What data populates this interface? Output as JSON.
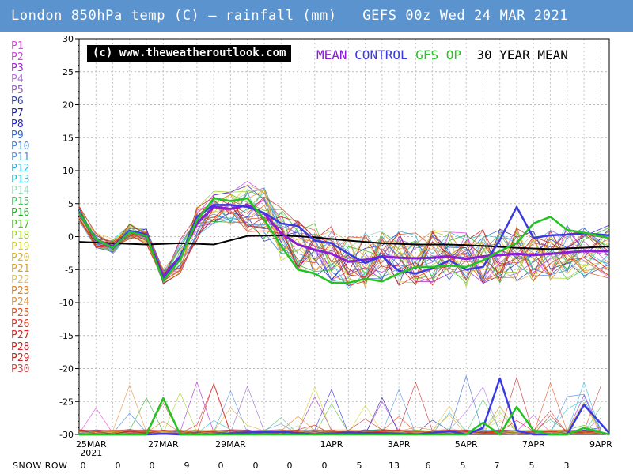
{
  "title": "London 850hPa temp (C) — rainfall (mm)   GEFS 00z Wed 24 MAR 2021",
  "badge": "(c) www.theweatheroutlook.com",
  "key": {
    "mean": "MEAN",
    "control": "CONTROL",
    "op": "GFS OP",
    "thirty": "30 YEAR MEAN"
  },
  "colors": {
    "header_bg": "#5b93cf",
    "mean": "#8a1dd6",
    "control": "#3a3ae0",
    "op": "#22c322",
    "thirty": "#000000"
  },
  "legend": [
    {
      "label": "P1",
      "color": "#e040e0"
    },
    {
      "label": "P2",
      "color": "#d040e0"
    },
    {
      "label": "P3",
      "color": "#a020d0"
    },
    {
      "label": "P4",
      "color": "#b070e0"
    },
    {
      "label": "P5",
      "color": "#9060c0"
    },
    {
      "label": "P6",
      "color": "#3040b0"
    },
    {
      "label": "P7",
      "color": "#2020a0"
    },
    {
      "label": "P8",
      "color": "#2020e0"
    },
    {
      "label": "P9",
      "color": "#3060d0"
    },
    {
      "label": "P10",
      "color": "#4080e0"
    },
    {
      "label": "P11",
      "color": "#5090e0"
    },
    {
      "label": "P12",
      "color": "#30b0e0"
    },
    {
      "label": "P13",
      "color": "#20c0d0"
    },
    {
      "label": "P14",
      "color": "#a0d8c0"
    },
    {
      "label": "P15",
      "color": "#40c060"
    },
    {
      "label": "P16",
      "color": "#20b020"
    },
    {
      "label": "P17",
      "color": "#50c020"
    },
    {
      "label": "P18",
      "color": "#a0d020"
    },
    {
      "label": "P19",
      "color": "#d0d020"
    },
    {
      "label": "P20",
      "color": "#e0b020"
    },
    {
      "label": "P21",
      "color": "#e0a020"
    },
    {
      "label": "P22",
      "color": "#e0c060"
    },
    {
      "label": "P23",
      "color": "#e08020"
    },
    {
      "label": "P24",
      "color": "#e09040"
    },
    {
      "label": "P25",
      "color": "#e05020"
    },
    {
      "label": "P26",
      "color": "#e03020"
    },
    {
      "label": "P27",
      "color": "#e02020"
    },
    {
      "label": "P28",
      "color": "#d02020"
    },
    {
      "label": "P29",
      "color": "#c02020"
    },
    {
      "label": "P30",
      "color": "#d04040"
    }
  ],
  "snow_row": {
    "label": "SNOW ROW",
    "values": [
      "0",
      "0",
      "0",
      "9",
      "0",
      "0",
      "0",
      "0",
      "5",
      "13",
      "6",
      "5",
      "7",
      "5",
      "3"
    ]
  },
  "chart_data": {
    "type": "line",
    "title": "London 850hPa temp (C) — rainfall (mm)",
    "ylim": [
      -30,
      30
    ],
    "yticks": [
      "30",
      "25",
      "20",
      "15",
      "10",
      "5",
      "0",
      "-5",
      "-10",
      "-15",
      "-20",
      "-25",
      "-30"
    ],
    "xlabels": [
      "25MAR",
      "2021",
      "27MAR",
      "29MAR",
      "1APR",
      "3APR",
      "5APR",
      "7APR",
      "9APR"
    ],
    "x_range_steps": [
      0,
      15.75
    ],
    "series": [
      {
        "name": "30 YEAR MEAN",
        "x": [
          0,
          1,
          2,
          3,
          4,
          5,
          6,
          7,
          8,
          9,
          10,
          11,
          12,
          13,
          14,
          15.75
        ],
        "values": [
          -0.8,
          -1.0,
          -1.2,
          -1.0,
          -1.2,
          0.1,
          0.2,
          -0.1,
          -0.6,
          -1.0,
          -1.2,
          -1.2,
          -1.4,
          -1.7,
          -1.9,
          -1.5
        ]
      },
      {
        "name": "MEAN",
        "x": [
          0,
          0.5,
          1,
          1.5,
          2,
          2.5,
          3,
          3.5,
          4,
          4.5,
          5,
          5.5,
          6,
          6.5,
          7,
          7.5,
          8,
          8.5,
          9,
          9.5,
          10,
          10.5,
          11,
          11.5,
          12,
          12.5,
          13,
          13.5,
          14,
          14.5,
          15,
          15.75
        ],
        "values": [
          3.6,
          -0.5,
          -1.5,
          0.8,
          0,
          -6.0,
          -3.0,
          2.0,
          4.5,
          4.2,
          4.8,
          3.5,
          0.5,
          -1.2,
          -2.0,
          -2.6,
          -3.8,
          -3.5,
          -3.0,
          -3.2,
          -3.3,
          -3.2,
          -3.0,
          -3.4,
          -3.0,
          -2.8,
          -2.6,
          -2.8,
          -2.6,
          -2.4,
          -2.2,
          -2.2
        ]
      },
      {
        "name": "CONTROL",
        "x": [
          0,
          0.5,
          1,
          1.5,
          2,
          2.5,
          3,
          3.5,
          4,
          4.5,
          5,
          5.5,
          6,
          6.5,
          7,
          7.5,
          8,
          8.5,
          9,
          9.5,
          10,
          10.5,
          11,
          11.5,
          12,
          12.5,
          13,
          13.5,
          14,
          14.5,
          15,
          15.75
        ],
        "values": [
          3.7,
          -0.3,
          -1.8,
          0.9,
          0.3,
          -6.5,
          -3.2,
          3.0,
          4.8,
          4.8,
          4.5,
          3.6,
          2.0,
          1.6,
          -0.6,
          -1.0,
          -2.6,
          -4.0,
          -3.0,
          -5.2,
          -5.6,
          -4.8,
          -3.6,
          -5.0,
          -4.6,
          -0.5,
          4.5,
          -0.2,
          0.2,
          0.3,
          0.5,
          0.2
        ]
      },
      {
        "name": "GFS OP",
        "x": [
          0,
          0.5,
          1,
          1.5,
          2,
          2.5,
          3,
          3.5,
          4,
          4.5,
          5,
          5.5,
          6,
          6.5,
          7,
          7.5,
          8,
          8.5,
          9,
          9.5,
          10,
          10.5,
          11,
          11.5,
          12,
          12.5,
          13,
          13.5,
          14,
          14.5,
          15,
          15.75
        ],
        "values": [
          3.6,
          -0.4,
          -1.7,
          0.7,
          0.1,
          -6.7,
          -3.5,
          2.5,
          5.8,
          5.4,
          5.8,
          2.6,
          -1.4,
          -5.0,
          -5.6,
          -7.0,
          -7.0,
          -6.4,
          -6.8,
          -5.6,
          -4.6,
          -4.6,
          -4.4,
          -4.6,
          -3.6,
          -2.2,
          -1.0,
          2.0,
          3.0,
          1.0,
          0.6,
          -0.2
        ]
      }
    ],
    "rain_series": [
      {
        "name": "CONTROL rainfall",
        "x": [
          0,
          1,
          2,
          2.5,
          3,
          4,
          5,
          6,
          7,
          8,
          9,
          10,
          11,
          11.5,
          12,
          12.5,
          13,
          13.5,
          14,
          14.5,
          15,
          15.75
        ],
        "values": [
          0,
          0,
          0,
          0.1,
          0,
          0,
          0.3,
          0.4,
          0,
          0.3,
          0.2,
          0,
          0.5,
          0,
          1.0,
          8.5,
          0.6,
          0,
          0,
          0,
          4.5,
          0.2
        ]
      },
      {
        "name": "GFS OP rainfall",
        "x": [
          0,
          1,
          2,
          2.5,
          3,
          4,
          5,
          6,
          7,
          8,
          9,
          10,
          11,
          11.5,
          12,
          12.5,
          13,
          13.5,
          14,
          14.5,
          15,
          15.75
        ],
        "values": [
          0,
          0,
          0,
          5.5,
          0,
          0,
          0,
          0,
          0,
          0,
          0,
          0,
          0,
          0,
          1.8,
          0,
          4.2,
          0.6,
          0,
          0,
          1.0,
          0
        ]
      }
    ]
  }
}
